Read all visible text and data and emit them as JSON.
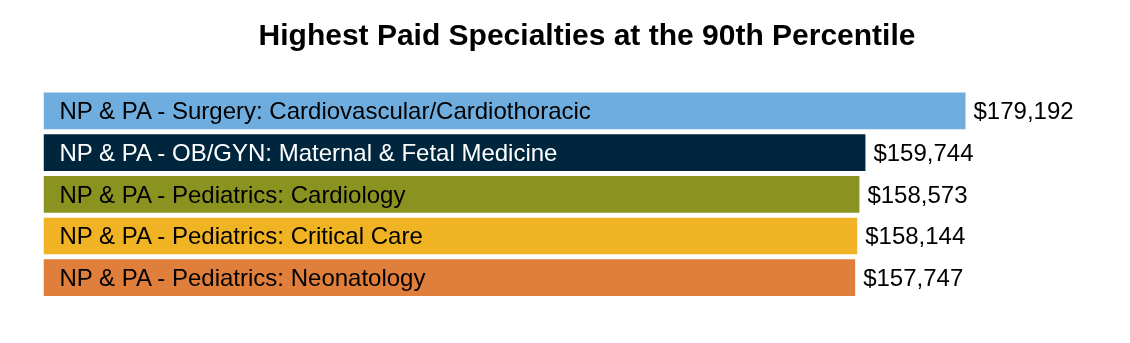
{
  "chart_data": {
    "type": "bar",
    "orientation": "horizontal",
    "title": "Highest Paid Specialties at the 90th Percentile",
    "categories": [
      "NP & PA - Surgery: Cardiovascular/Cardiothoracic",
      "NP & PA - OB/GYN: Maternal & Fetal Medicine",
      "NP & PA - Pediatrics: Cardiology",
      "NP & PA - Pediatrics: Critical Care",
      "NP & PA - Pediatrics: Neonatology"
    ],
    "values": [
      179192,
      159744,
      158573,
      158144,
      157747
    ],
    "value_labels": [
      "$179,192",
      "$159,744",
      "$158,573",
      "$158,144",
      "$157,747"
    ],
    "colors": [
      "#6fadde",
      "#00263e",
      "#8a9320",
      "#f0b323",
      "#e07f3c"
    ]
  }
}
